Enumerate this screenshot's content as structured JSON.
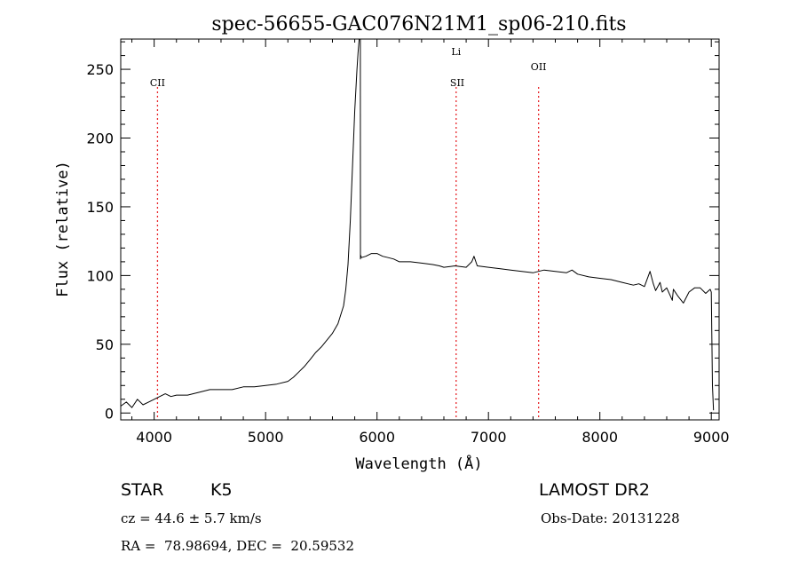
{
  "chart_data": {
    "type": "line",
    "title": "spec-56655-GAC076N21M1_sp06-210.fits",
    "xlabel": "Wavelength (Å)",
    "ylabel": "Flux (relative)",
    "xlim": [
      3700,
      9070
    ],
    "ylim": [
      -5,
      272
    ],
    "x_ticks": [
      4000,
      5000,
      6000,
      7000,
      8000,
      9000
    ],
    "x_tick_labels": [
      "4000",
      "5000",
      "6000",
      "7000",
      "8000",
      "9000"
    ],
    "y_ticks": [
      0,
      50,
      100,
      150,
      200,
      250
    ],
    "y_tick_labels": [
      "0",
      "50",
      "100",
      "150",
      "200",
      "250"
    ],
    "grid": false,
    "series": [
      {
        "color": "#000000",
        "x": [
          3700,
          3750,
          3800,
          3850,
          3900,
          3950,
          4000,
          4050,
          4100,
          4150,
          4200,
          4300,
          4400,
          4500,
          4600,
          4700,
          4800,
          4900,
          5000,
          5100,
          5200,
          5250,
          5300,
          5350,
          5400,
          5450,
          5500,
          5550,
          5600,
          5650,
          5700,
          5720,
          5740,
          5760,
          5780,
          5800,
          5820,
          5830,
          5840,
          5845,
          5850,
          5851,
          5852,
          5860,
          5900,
          5950,
          6000,
          6050,
          6100,
          6150,
          6200,
          6300,
          6400,
          6500,
          6560,
          6600,
          6700,
          6800,
          6850,
          6870,
          6900,
          7000,
          7100,
          7200,
          7300,
          7400,
          7450,
          7500,
          7600,
          7700,
          7750,
          7800,
          7900,
          8000,
          8100,
          8200,
          8300,
          8350,
          8400,
          8450,
          8480,
          8500,
          8540,
          8560,
          8600,
          8650,
          8660,
          8700,
          8750,
          8800,
          8850,
          8900,
          8950,
          8990,
          9000,
          9010,
          9020
        ],
        "y": [
          5,
          8,
          4,
          10,
          6,
          8,
          10,
          12,
          14,
          12,
          13,
          13,
          15,
          17,
          17,
          17,
          19,
          19,
          20,
          21,
          23,
          26,
          30,
          34,
          39,
          44,
          48,
          53,
          58,
          65,
          78,
          90,
          108,
          140,
          180,
          220,
          250,
          262,
          272,
          272,
          272,
          112,
          115,
          113,
          114,
          116,
          116,
          114,
          113,
          112,
          110,
          110,
          109,
          108,
          107,
          106,
          107,
          106,
          110,
          114,
          107,
          106,
          105,
          104,
          103,
          102,
          103,
          104,
          103,
          102,
          104,
          101,
          99,
          98,
          97,
          95,
          93,
          94,
          92,
          103,
          94,
          89,
          95,
          88,
          91,
          82,
          90,
          85,
          80,
          88,
          91,
          91,
          87,
          90,
          88,
          20,
          2
        ]
      }
    ],
    "annotations": [
      {
        "label": "CII",
        "x": 4030
      },
      {
        "label": "Li",
        "x": 6710
      },
      {
        "label": "SII",
        "x": 6720
      },
      {
        "label": "OII",
        "x": 7450
      }
    ]
  },
  "info": {
    "object_class": "STAR",
    "subclass": "K5",
    "survey": "LAMOST DR2",
    "velocity": "cz = 44.6 ± 5.7 km/s",
    "obs_date": "Obs-Date: 20131228",
    "coords": "RA =  78.98694, DEC =  20.59532"
  },
  "colors": {
    "spectrum": "#000000",
    "line_markers": "#e8262a",
    "axes": "#000000"
  }
}
